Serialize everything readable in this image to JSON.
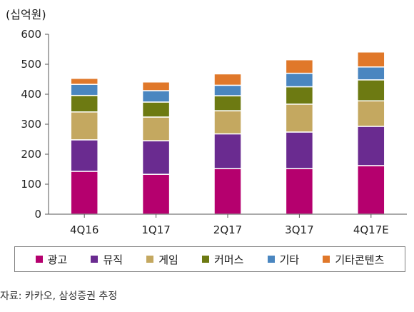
{
  "unit_label": "(십억원)",
  "source": "자료: 카카오, 삼성증권 추정",
  "colors": {
    "광고": "#b5006e",
    "뮤직": "#6a2b90",
    "게임": "#c4a860",
    "커머스": "#6d7a12",
    "기타": "#4a86c0",
    "기타콘텐츠": "#e0782a"
  },
  "chart_data": {
    "type": "bar",
    "stacked": true,
    "categories": [
      "4Q16",
      "1Q17",
      "2Q17",
      "3Q17",
      "4Q17E"
    ],
    "ylim": [
      0,
      600
    ],
    "yticks": [
      0,
      100,
      200,
      300,
      400,
      500,
      600
    ],
    "grid": false,
    "legend_position": "bottom",
    "series": [
      {
        "name": "광고",
        "values": [
          143,
          133,
          152,
          152,
          162
        ]
      },
      {
        "name": "뮤직",
        "values": [
          105,
          112,
          116,
          122,
          131
        ]
      },
      {
        "name": "게임",
        "values": [
          93,
          79,
          77,
          93,
          85
        ]
      },
      {
        "name": "커머스",
        "values": [
          55,
          50,
          50,
          58,
          70
        ]
      },
      {
        "name": "기타",
        "values": [
          37,
          38,
          35,
          45,
          43
        ]
      },
      {
        "name": "기타콘텐츠",
        "values": [
          20,
          29,
          38,
          45,
          50
        ]
      }
    ]
  }
}
